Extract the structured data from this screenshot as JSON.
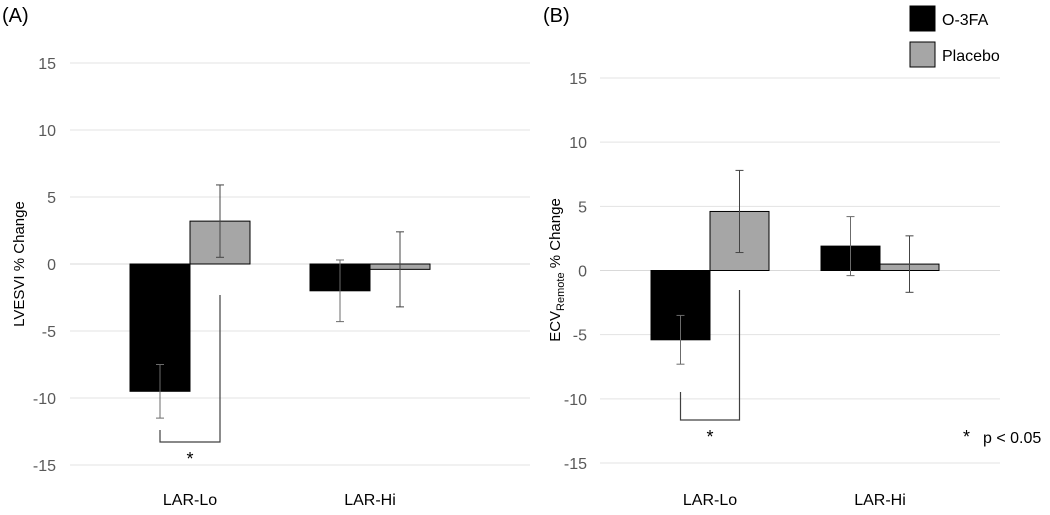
{
  "chart_data": [
    {
      "type": "bar",
      "panel_label": "(A)",
      "ylabel": "LVESVI % Change",
      "ylim": [
        -15,
        15
      ],
      "yticks": [
        15,
        10,
        5,
        0,
        -5,
        -10,
        -15
      ],
      "categories": [
        "LAR-Lo",
        "LAR-Hi"
      ],
      "series": [
        {
          "name": "O-3FA",
          "color": "#000000",
          "values": [
            -9.5,
            -2.0
          ],
          "errors": [
            2.0,
            2.3
          ]
        },
        {
          "name": "Placebo",
          "color": "#a6a6a6",
          "values": [
            3.2,
            -0.4
          ],
          "errors": [
            2.7,
            2.8
          ]
        }
      ],
      "annotations": [
        {
          "text": "*"
        }
      ]
    },
    {
      "type": "bar",
      "panel_label": "(B)",
      "ylabel": "ECV",
      "ylabel_sub": "Remote",
      "ylabel_suffix": " % Change",
      "ylim": [
        -15,
        15
      ],
      "yticks": [
        15,
        10,
        5,
        0,
        -5,
        -10,
        -15
      ],
      "categories": [
        "LAR-Lo",
        "LAR-Hi"
      ],
      "series": [
        {
          "name": "O-3FA",
          "color": "#000000",
          "values": [
            -5.4,
            1.9
          ],
          "errors": [
            1.9,
            2.3
          ]
        },
        {
          "name": "Placebo",
          "color": "#a6a6a6",
          "values": [
            4.6,
            0.5
          ],
          "errors": [
            3.2,
            2.2
          ]
        }
      ],
      "annotations": [
        {
          "text": "*"
        }
      ]
    }
  ],
  "legend": {
    "placement": "top-right",
    "items": [
      {
        "name": "O-3FA",
        "color": "#000000"
      },
      {
        "name": "Placebo",
        "color": "#a6a6a6"
      }
    ]
  },
  "footnote": {
    "symbol": "*",
    "text": "p < 0.05"
  }
}
